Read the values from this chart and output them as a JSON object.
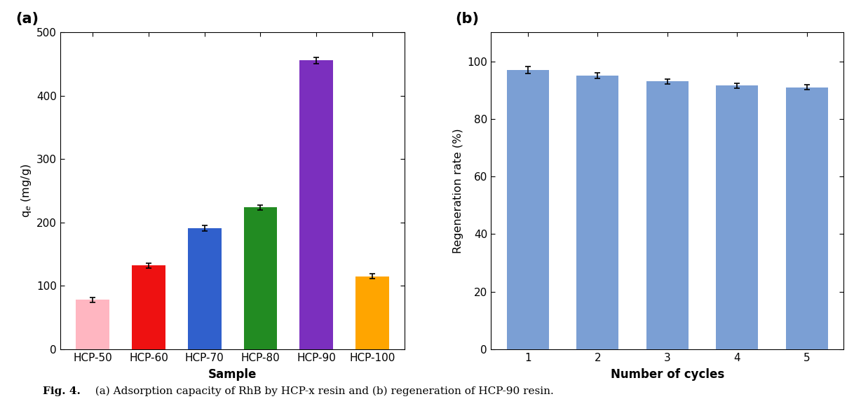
{
  "panel_a": {
    "categories": [
      "HCP-50",
      "HCP-60",
      "HCP-70",
      "HCP-80",
      "HCP-90",
      "HCP-100"
    ],
    "values": [
      78,
      132,
      191,
      224,
      456,
      115
    ],
    "errors": [
      4,
      4,
      4,
      4,
      5,
      4
    ],
    "colors": [
      "#FFB6C1",
      "#EE1111",
      "#3060CC",
      "#228B22",
      "#7B2FBE",
      "#FFA500"
    ],
    "ylabel": "q$_e$ (mg/g)",
    "xlabel": "Sample",
    "ylim": [
      0,
      500
    ],
    "yticks": [
      0,
      100,
      200,
      300,
      400,
      500
    ],
    "label": "(a)"
  },
  "panel_b": {
    "categories": [
      "1",
      "2",
      "3",
      "4",
      "5"
    ],
    "values": [
      97.0,
      95.0,
      93.0,
      91.5,
      91.0
    ],
    "errors": [
      1.2,
      0.9,
      0.9,
      0.9,
      0.8
    ],
    "color": "#7B9FD4",
    "ylabel": "Regeneration rate (%)",
    "xlabel": "Number of cycles",
    "ylim": [
      0,
      110
    ],
    "yticks": [
      0,
      20,
      40,
      60,
      80,
      100
    ],
    "label": "(b)"
  },
  "caption_bold": "Fig. 4.",
  "caption_rest": "  (a) Adsorption capacity of RhB by HCP-x resin and (b) regeneration of HCP-90 resin.",
  "fig_background": "#FFFFFF"
}
